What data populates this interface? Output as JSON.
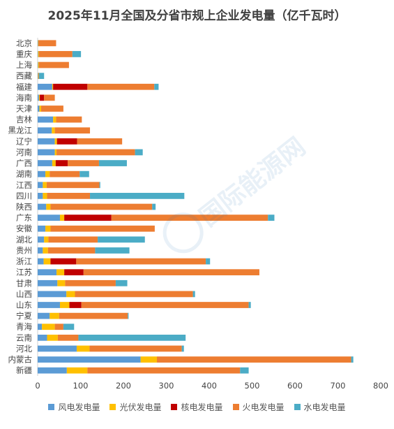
{
  "chart_data": {
    "type": "bar",
    "orientation": "horizontal",
    "stacked": true,
    "title": "2025年11月全国及分省市规上企业发电量（亿千瓦时）",
    "categories": [
      "北京",
      "重庆",
      "上海",
      "西藏",
      "福建",
      "海南",
      "天津",
      "吉林",
      "黑龙江",
      "辽宁",
      "河南",
      "广西",
      "湖南",
      "江西",
      "四川",
      "陕西",
      "广东",
      "安徽",
      "湖北",
      "贵州",
      "浙江",
      "江苏",
      "甘肃",
      "山西",
      "山东",
      "宁夏",
      "青海",
      "云南",
      "河北",
      "内蒙古",
      "新疆"
    ],
    "series": [
      {
        "name": "风电发电量",
        "color": "#5b9bd5",
        "values": [
          1,
          1,
          1,
          1,
          34,
          3,
          4,
          36,
          33,
          40,
          40,
          34,
          18,
          12,
          12,
          20,
          52,
          18,
          15,
          12,
          14,
          44,
          46,
          67,
          52,
          28,
          10,
          22,
          91,
          240,
          68
        ]
      },
      {
        "name": "光伏发电量",
        "color": "#ffc000",
        "values": [
          1,
          2,
          2,
          1,
          2,
          2,
          4,
          7,
          7,
          5,
          4,
          8,
          10,
          9,
          10,
          10,
          10,
          12,
          10,
          12,
          16,
          18,
          18,
          20,
          22,
          22,
          30,
          25,
          30,
          38,
          48
        ]
      },
      {
        "name": "核电发电量",
        "color": "#c00000",
        "values": [
          0,
          0,
          0,
          0,
          80,
          10,
          0,
          0,
          0,
          47,
          0,
          28,
          0,
          0,
          0,
          0,
          110,
          0,
          0,
          0,
          60,
          45,
          0,
          0,
          28,
          0,
          0,
          0,
          0,
          0,
          0
        ]
      },
      {
        "name": "火电发电量",
        "color": "#ed7d31",
        "values": [
          41,
          78,
          70,
          1,
          156,
          25,
          52,
          60,
          82,
          105,
          183,
          73,
          70,
          123,
          100,
          237,
          365,
          243,
          115,
          110,
          302,
          410,
          118,
          275,
          390,
          160,
          20,
          48,
          215,
          453,
          356
        ]
      },
      {
        "name": "水电发电量",
        "color": "#4bacc6",
        "values": [
          0,
          20,
          0,
          12,
          10,
          0,
          0,
          0,
          0,
          0,
          18,
          65,
          22,
          2,
          220,
          8,
          15,
          0,
          110,
          80,
          10,
          0,
          27,
          5,
          5,
          2,
          25,
          250,
          5,
          5,
          20
        ]
      }
    ],
    "xlim": [
      0,
      800
    ],
    "xticks": [
      "0",
      "100",
      "200",
      "300",
      "400",
      "500",
      "600",
      "700",
      "800"
    ],
    "grid": false,
    "legend_position": "bottom"
  },
  "watermark": "国际能源网"
}
